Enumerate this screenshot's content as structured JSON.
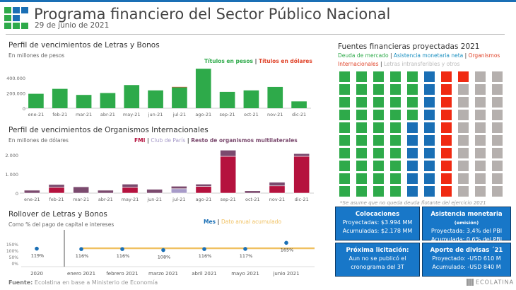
{
  "header": {
    "title": "Programa financiero del Sector Público Nacional",
    "date": "29 de junio de 2021",
    "colors": {
      "bar": "#1a6fb5",
      "green": "#2eaa4a",
      "blue": "#1a6fb5"
    }
  },
  "chart_data": [
    {
      "id": "letras",
      "type": "bar",
      "title": "Perfil de vencimientos de Letras y Bonos",
      "subtitle": "En millones de pesos",
      "legend": [
        "Títulos en pesos",
        "Títulos en dólares"
      ],
      "legend_sep": "|",
      "categories": [
        "ene-21",
        "feb-21",
        "mar-21",
        "abr-21",
        "may-21",
        "jun-21",
        "jul-21",
        "ago-21",
        "sep-21",
        "oct-21",
        "nov-21",
        "dic-21"
      ],
      "series": [
        {
          "name": "Títulos en pesos",
          "color": "#2eaa4a",
          "values": [
            190000,
            255000,
            175000,
            200000,
            305000,
            235000,
            275000,
            520000,
            215000,
            235000,
            280000,
            90000
          ]
        },
        {
          "name": "Títulos en dólares",
          "color": "#e0452b",
          "values": [
            0,
            0,
            0,
            0,
            0,
            0,
            6000,
            0,
            0,
            0,
            0,
            0
          ]
        }
      ],
      "yticks": [
        0,
        200000,
        400000
      ],
      "ytick_labels": [
        "0",
        "200.000",
        "400.000"
      ],
      "ylim": [
        0,
        540000
      ],
      "stacked": true
    },
    {
      "id": "organismos",
      "type": "bar",
      "title": "Perfil de vencimientos de Organismos Internacionales",
      "subtitle": "En millones de dólares",
      "legend": [
        "FMI",
        "Club de París",
        "Resto de organismos multilaterales"
      ],
      "legend_sep": "|",
      "categories": [
        "ene-21",
        "feb-21",
        "mar-21",
        "abr-21",
        "may-21",
        "jun-21",
        "jul-21",
        "ago-21",
        "sep-21",
        "oct-21",
        "nov-21",
        "dic-21"
      ],
      "series": [
        {
          "name": "FMI",
          "color": "#b5123e",
          "values": [
            0,
            300,
            0,
            0,
            300,
            0,
            0,
            350,
            1930,
            0,
            380,
            1930
          ]
        },
        {
          "name": "Club de París",
          "color": "#a79bc9",
          "values": [
            0,
            0,
            0,
            0,
            0,
            0,
            230,
            0,
            0,
            0,
            0,
            0
          ]
        },
        {
          "name": "Resto de organismos multilaterales",
          "color": "#7b4a6e",
          "values": [
            150,
            150,
            330,
            150,
            170,
            200,
            130,
            120,
            320,
            120,
            190,
            140
          ]
        }
      ],
      "yticks": [
        0,
        1000,
        2000
      ],
      "ytick_labels": [
        "0",
        "1.000",
        "2.000"
      ],
      "ylim": [
        0,
        2300
      ],
      "stacked": true
    },
    {
      "id": "rollover",
      "type": "scatter",
      "title": "Rollover de Letras y Bonos",
      "subtitle": "Como % del pago de capital e intereses",
      "legend": [
        "Mes",
        "Dato anual acumulado"
      ],
      "legend_sep": "|",
      "categories": [
        "2020",
        "enero 2021",
        "febrero 2021",
        "marzo 2021",
        "abril 2021",
        "mayo 2021",
        "junio 2021"
      ],
      "values": [
        119,
        116,
        116,
        108,
        116,
        117,
        165
      ],
      "labels": [
        "119%",
        "116%",
        "116%",
        "108%",
        "116%",
        "117%",
        "165%"
      ],
      "annual_accumulated": 122,
      "yticks": [
        0,
        50,
        100,
        150
      ],
      "ytick_labels": [
        "0%",
        "50%",
        "100%",
        "150%"
      ],
      "ylim": [
        0,
        170
      ]
    },
    {
      "id": "fuentes",
      "type": "waffle",
      "title": "Fuentes financieras proyectadas 2021",
      "legend": [
        "Deuda de mercado",
        "Asistencia monetaria neta",
        "Organismos Internacionales",
        "Letras intransferibles y otros"
      ],
      "legend_text": {
        "l1": "Deuda de mercado",
        "l2": "Asistencia monetaria neta",
        "l3a": "Organismos",
        "l3b": "Internacionales",
        "l4": "Letras intransferibles y otros",
        "sep": "|"
      },
      "categories": [
        "Deuda de mercado",
        "Asistencia monetaria neta",
        "Organismos Internacionales",
        "Letras intransferibles y otros"
      ],
      "values": [
        44,
        16,
        11,
        29
      ],
      "colors": [
        "#2eaa4a",
        "#1a6fb5",
        "#f02a12",
        "#b5b0ae"
      ],
      "note": "*Se asume que no queda deuda flotante del ejercicio 2021"
    }
  ],
  "boxes": {
    "colocaciones": {
      "title": "Colocaciones",
      "l1": "Proyectadas: $3.994  MM",
      "l2": "Acumuladas: $2.178 MM"
    },
    "asistencia": {
      "title": "Asistencia monetaria",
      "title_small": "(emisión)",
      "l1": "Proyectada: 3,4% del PBI",
      "l2": "Acumulada: 0,6% del PBI"
    },
    "licitacion": {
      "title": "Próxima licitación:",
      "l1": "Aun no se publicó el",
      "l2": "cronograma del 3T"
    },
    "divisas": {
      "title": "Aporte de divisas ´21",
      "l1": "Proyectado: -USD 610 M",
      "l2": "Acumulado: -USD 840 M"
    }
  },
  "footer": {
    "fuente_label": "Fuente:",
    "fuente_text": "Ecolatina en base a Ministerio de Economía",
    "brand": "ECOLATINA"
  }
}
